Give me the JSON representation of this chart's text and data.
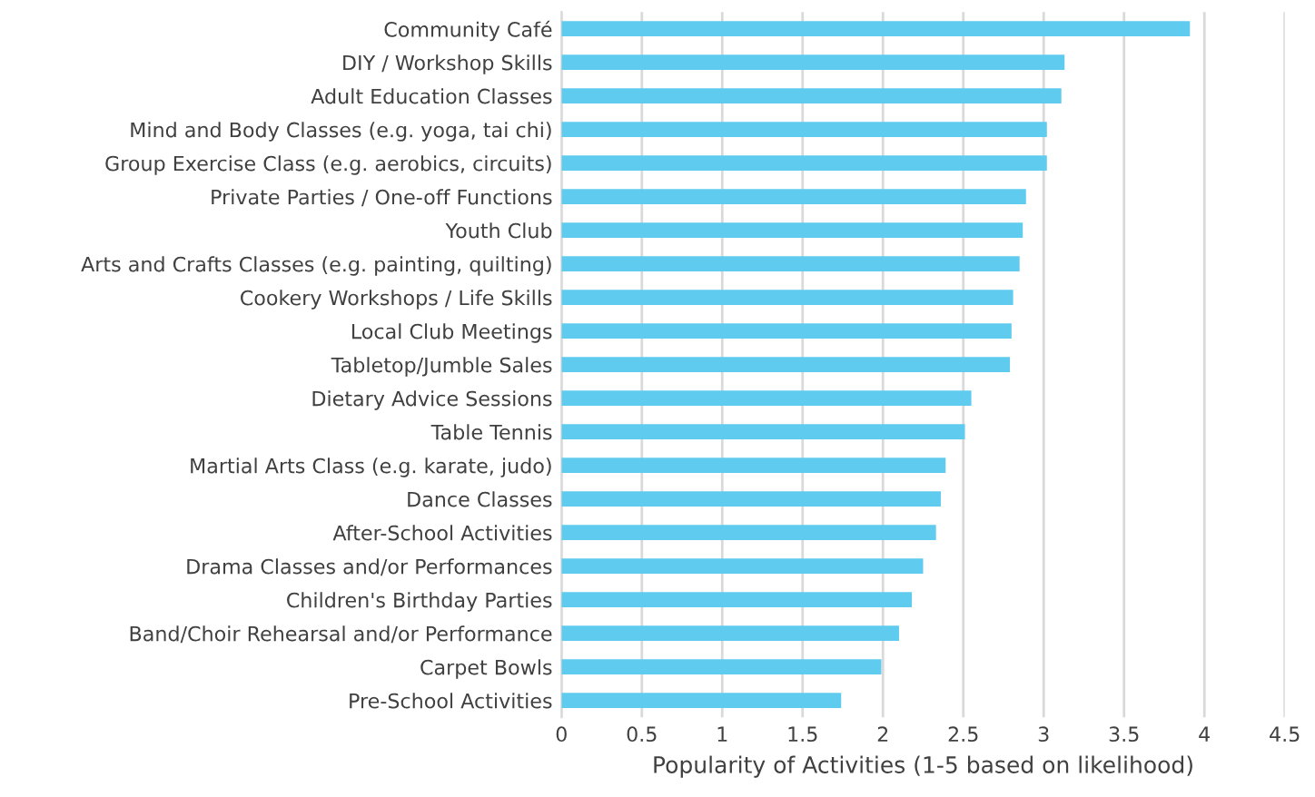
{
  "chart_data": {
    "type": "bar",
    "orientation": "horizontal",
    "xlabel": "Popularity of Activities (1-5 based on likelihood)",
    "categories": [
      "Community Café",
      "DIY / Workshop Skills",
      "Adult Education Classes",
      "Mind and Body Classes (e.g. yoga, tai chi)",
      "Group Exercise Class (e.g. aerobics, circuits)",
      "Private Parties / One-off Functions",
      "Youth Club",
      "Arts and Crafts Classes (e.g. painting, quilting)",
      "Cookery Workshops / Life Skills",
      "Local Club Meetings",
      "Tabletop/Jumble Sales",
      "Dietary Advice Sessions",
      "Table Tennis",
      "Martial Arts Class (e.g. karate, judo)",
      "Dance Classes",
      "After-School Activities",
      "Drama Classes and/or Performances",
      "Children's Birthday Parties",
      "Band/Choir Rehearsal and/or Performance",
      "Carpet Bowls",
      "Pre-School Activities"
    ],
    "values": [
      3.91,
      3.13,
      3.11,
      3.02,
      3.02,
      2.89,
      2.87,
      2.85,
      2.81,
      2.8,
      2.79,
      2.55,
      2.51,
      2.39,
      2.36,
      2.33,
      2.25,
      2.18,
      2.1,
      1.99,
      1.74
    ],
    "color": "#5ecbef",
    "xlim": [
      0,
      4.5
    ],
    "xticks": [
      0,
      0.5,
      1,
      1.5,
      2,
      2.5,
      3,
      3.5,
      4,
      4.5
    ],
    "grid": "x"
  }
}
